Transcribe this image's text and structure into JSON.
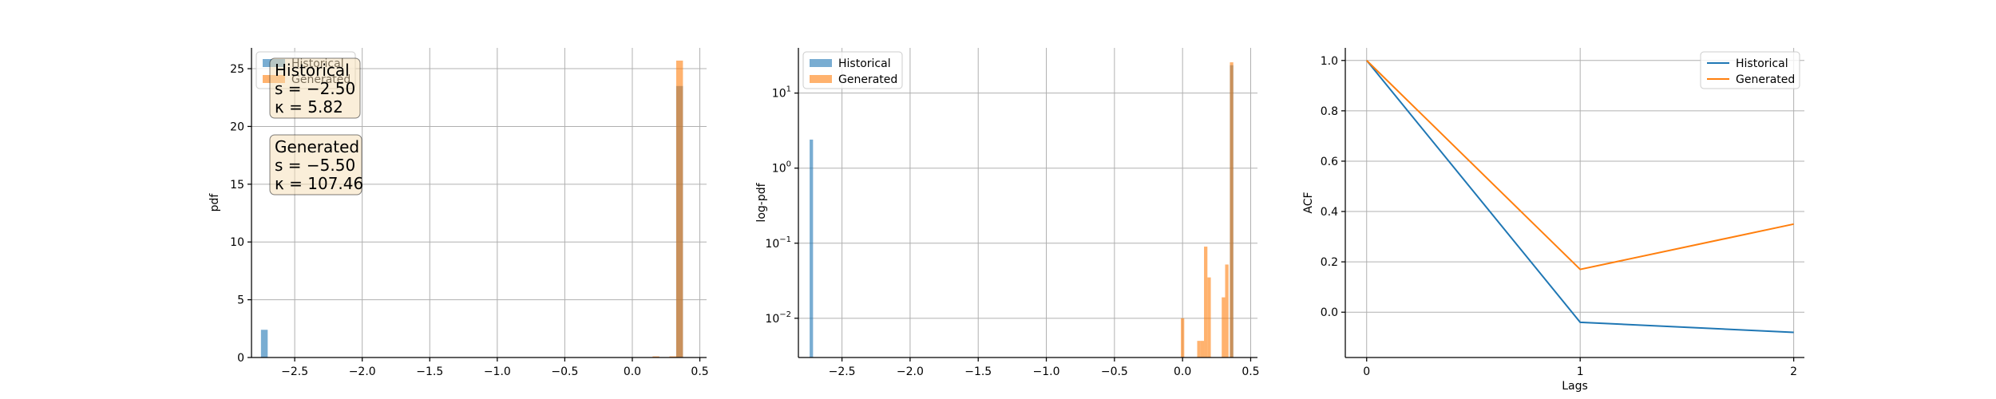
{
  "colors": {
    "historical": "#1f77b4",
    "generated": "#ff7f0e"
  },
  "chart_data": [
    {
      "type": "bar",
      "ylabel": "pdf",
      "xlim": [
        -2.82,
        0.55
      ],
      "ylim": [
        0,
        26.8
      ],
      "grid": true,
      "legend_position": "top-left",
      "xticks": [
        -2.5,
        -2.0,
        -1.5,
        -1.0,
        -0.5,
        0.0,
        0.5
      ],
      "xtick_labels": [
        "−2.5",
        "−2.0",
        "−1.5",
        "−1.0",
        "−0.5",
        "0.0",
        "0.5"
      ],
      "yticks": [
        0,
        5,
        10,
        15,
        20,
        25
      ],
      "ytick_labels": [
        "0",
        "5",
        "10",
        "15",
        "20",
        "25"
      ],
      "bin_width": 0.05,
      "series": [
        {
          "name": "Historical",
          "bins": [
            [
              -2.725,
              2.4
            ],
            [
              0.35,
              23.5
            ]
          ]
        },
        {
          "name": "Generated",
          "bins": [
            [
              0.175,
              0.1
            ],
            [
              0.3,
              0.1
            ],
            [
              0.35,
              25.7
            ]
          ]
        }
      ],
      "stat_boxes": [
        {
          "lines": [
            "Historical",
            "s = −2.50",
            "κ = 5.82"
          ]
        },
        {
          "lines": [
            "Generated",
            "s = −5.50",
            "κ = 107.46"
          ]
        }
      ]
    },
    {
      "type": "bar",
      "ylabel": "log-pdf",
      "yscale": "log",
      "xlim": [
        -2.82,
        0.55
      ],
      "ylim": [
        0.003,
        40
      ],
      "grid": true,
      "legend_position": "top-left",
      "xticks": [
        -2.5,
        -2.0,
        -1.5,
        -1.0,
        -0.5,
        0.0,
        0.5
      ],
      "xtick_labels": [
        "−2.5",
        "−2.0",
        "−1.5",
        "−1.0",
        "−0.5",
        "0.0",
        "0.5"
      ],
      "yticks": [
        0.01,
        0.1,
        1,
        10
      ],
      "ytick_labels": [
        [
          "10",
          "−2"
        ],
        [
          "10",
          "−1"
        ],
        [
          "10",
          "0"
        ],
        [
          "10",
          "1"
        ]
      ],
      "bin_width": 0.025,
      "series": [
        {
          "name": "Historical",
          "bins": [
            [
              -2.725,
              2.4
            ],
            [
              0.36,
              23.5
            ]
          ]
        },
        {
          "name": "Generated",
          "bins": [
            [
              0.0,
              0.01
            ],
            [
              0.12,
              0.005
            ],
            [
              0.145,
              0.005
            ],
            [
              0.17,
              0.09
            ],
            [
              0.195,
              0.035
            ],
            [
              0.3,
              0.019
            ],
            [
              0.325,
              0.052
            ],
            [
              0.36,
              25.7
            ]
          ]
        }
      ]
    },
    {
      "type": "line",
      "xlabel": "Lags",
      "ylabel": "ACF",
      "x": [
        0,
        1,
        2
      ],
      "xlim": [
        -0.1,
        2.05
      ],
      "ylim": [
        -0.18,
        1.05
      ],
      "grid": true,
      "legend_position": "top-right",
      "xticks": [
        0,
        1,
        2
      ],
      "xtick_labels": [
        "0",
        "1",
        "2"
      ],
      "yticks": [
        0.0,
        0.2,
        0.4,
        0.6,
        0.8,
        1.0
      ],
      "ytick_labels": [
        "0.0",
        "0.2",
        "0.4",
        "0.6",
        "0.8",
        "1.0"
      ],
      "series": [
        {
          "name": "Historical",
          "values": [
            1.0,
            -0.04,
            -0.08
          ]
        },
        {
          "name": "Generated",
          "values": [
            1.0,
            0.17,
            0.35
          ]
        }
      ]
    }
  ]
}
